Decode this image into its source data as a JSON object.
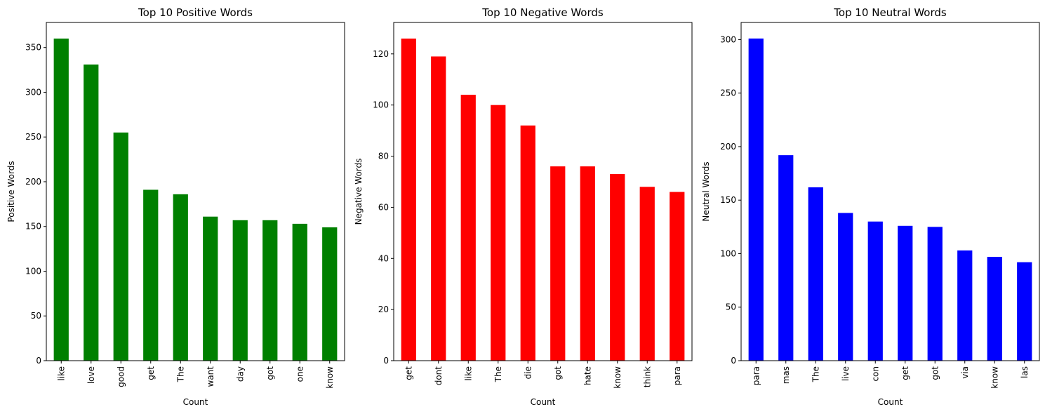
{
  "chart_data": [
    {
      "type": "bar",
      "title": "Top 10 Positive Words",
      "xlabel": "Count",
      "ylabel": "Positive Words",
      "color": "#008000",
      "categories": [
        "like",
        "love",
        "good",
        "get",
        "The",
        "want",
        "day",
        "got",
        "one",
        "know"
      ],
      "values": [
        360,
        331,
        255,
        191,
        186,
        161,
        157,
        157,
        153,
        149
      ],
      "ylim": [
        0,
        378
      ],
      "yticks": [
        0,
        50,
        100,
        150,
        200,
        250,
        300,
        350
      ],
      "grid": false,
      "legend": false
    },
    {
      "type": "bar",
      "title": "Top 10 Negative Words",
      "xlabel": "Count",
      "ylabel": "Negative Words",
      "color": "#ff0000",
      "categories": [
        "get",
        "dont",
        "like",
        "The",
        "die",
        "got",
        "hate",
        "know",
        "think",
        "para"
      ],
      "values": [
        126,
        119,
        104,
        100,
        92,
        76,
        76,
        73,
        68,
        66
      ],
      "ylim": [
        0,
        132.3
      ],
      "yticks": [
        0,
        20,
        40,
        60,
        80,
        100,
        120
      ],
      "grid": false,
      "legend": false
    },
    {
      "type": "bar",
      "title": "Top 10 Neutral Words",
      "xlabel": "Count",
      "ylabel": "Neutral Words",
      "color": "#0000ff",
      "categories": [
        "para",
        "mas",
        "The",
        "live",
        "con",
        "get",
        "got",
        "via",
        "know",
        "las"
      ],
      "values": [
        301,
        192,
        162,
        138,
        130,
        126,
        125,
        103,
        97,
        92
      ],
      "ylim": [
        0,
        316
      ],
      "yticks": [
        0,
        50,
        100,
        150,
        200,
        250,
        300
      ],
      "grid": false,
      "legend": false
    }
  ]
}
